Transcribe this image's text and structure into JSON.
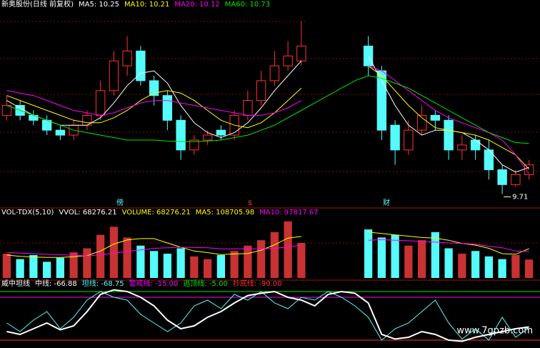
{
  "chart_data": [
    {
      "type": "candlestick",
      "title": "新奥股份(日线 前复权)",
      "up_color": "#ff3232",
      "down_color": "#54fcfc",
      "ylim": [
        9.5,
        13.4
      ],
      "open": [
        11.3,
        11.5,
        11.3,
        11.2,
        11.0,
        10.9,
        11.1,
        11.3,
        11.8,
        12.3,
        12.6,
        12.0,
        11.7,
        11.2,
        10.6,
        10.8,
        11.0,
        10.9,
        11.3,
        11.6,
        12.0,
        12.3,
        12.4,
        null,
        null,
        null,
        null,
        12.7,
        12.2,
        11.1,
        10.6,
        11.0,
        11.3,
        11.2,
        10.6,
        10.8,
        10.6,
        10.2,
        9.9,
        10.1
      ],
      "high": [
        11.7,
        11.6,
        11.4,
        11.3,
        11.1,
        11.2,
        11.4,
        12.0,
        12.6,
        12.9,
        12.7,
        12.1,
        11.8,
        11.3,
        10.9,
        11.0,
        11.1,
        11.4,
        11.8,
        12.2,
        12.6,
        12.8,
        13.2,
        null,
        null,
        null,
        null,
        12.9,
        12.3,
        11.2,
        11.2,
        11.5,
        11.4,
        11.3,
        10.9,
        10.9,
        10.8,
        10.3,
        10.2,
        10.4
      ],
      "low": [
        11.2,
        11.2,
        11.1,
        10.9,
        10.8,
        10.8,
        11.0,
        11.2,
        11.7,
        12.1,
        11.9,
        11.5,
        11.0,
        10.4,
        10.5,
        10.7,
        10.8,
        10.8,
        11.2,
        11.5,
        11.9,
        12.2,
        12.3,
        null,
        null,
        null,
        null,
        12.1,
        10.8,
        10.3,
        10.5,
        10.9,
        11.0,
        10.4,
        10.4,
        10.4,
        10.0,
        9.71,
        9.85,
        10.0
      ],
      "close": [
        11.5,
        11.3,
        11.2,
        11.0,
        10.9,
        11.1,
        11.3,
        11.8,
        12.4,
        12.6,
        12.0,
        11.7,
        11.2,
        10.6,
        10.8,
        10.9,
        10.9,
        11.3,
        11.6,
        12.0,
        12.3,
        12.5,
        12.7,
        null,
        null,
        null,
        null,
        12.3,
        11.0,
        10.6,
        11.0,
        11.3,
        11.2,
        10.6,
        10.7,
        10.6,
        10.2,
        9.9,
        10.1,
        10.3
      ],
      "series": [
        {
          "label": "MA5: 10.25",
          "color": "#ffffff",
          "values": [
            11.6,
            11.45,
            11.3,
            11.2,
            11.1,
            11.1,
            11.1,
            11.25,
            11.55,
            11.9,
            12.15,
            12.2,
            11.95,
            11.5,
            11.15,
            10.95,
            10.85,
            10.95,
            11.15,
            11.45,
            11.8,
            12.1,
            12.4,
            null,
            null,
            null,
            null,
            12.5,
            12.0,
            11.5,
            11.1,
            10.9,
            11.0,
            11.0,
            10.95,
            10.8,
            10.6,
            10.3,
            10.15,
            10.25
          ]
        },
        {
          "label": "MA10: 10.21",
          "color": "#ffff00",
          "values": [
            11.7,
            11.6,
            11.5,
            11.4,
            11.3,
            11.2,
            11.15,
            11.15,
            11.25,
            11.4,
            11.6,
            11.75,
            11.8,
            11.75,
            11.6,
            11.4,
            11.2,
            11.1,
            11.05,
            11.15,
            11.35,
            11.6,
            11.85,
            null,
            null,
            null,
            null,
            12.3,
            12.1,
            11.8,
            11.5,
            11.25,
            11.05,
            11.0,
            10.95,
            10.9,
            10.8,
            10.65,
            10.5,
            10.21
          ]
        },
        {
          "label": "MA20: 10.12",
          "color": "#ff00ff",
          "values": [
            11.8,
            11.75,
            11.7,
            11.6,
            11.5,
            11.4,
            11.35,
            11.3,
            11.35,
            11.45,
            11.55,
            11.6,
            11.6,
            11.55,
            11.5,
            11.45,
            11.4,
            11.35,
            11.3,
            11.3,
            11.35,
            11.45,
            11.6,
            null,
            null,
            null,
            null,
            12.3,
            12.2,
            12.0,
            11.8,
            11.6,
            11.4,
            11.25,
            11.15,
            11.05,
            10.95,
            10.8,
            10.5,
            10.12
          ]
        },
        {
          "label": "MA60: 10.73",
          "color": "#00e600",
          "values": [
            11.5,
            11.4,
            11.3,
            11.2,
            11.1,
            11.0,
            10.95,
            10.9,
            10.85,
            10.8,
            10.8,
            10.8,
            10.78,
            10.77,
            10.77,
            10.78,
            10.8,
            10.85,
            10.9,
            11.0,
            11.1,
            11.25,
            11.4,
            11.55,
            11.7,
            11.85,
            12.0,
            12.1,
            12.05,
            11.95,
            11.85,
            11.7,
            11.55,
            11.4,
            11.25,
            11.1,
            10.95,
            10.85,
            10.75,
            10.73
          ]
        }
      ]
    },
    {
      "type": "bar",
      "title": "VOL-TDX(5,10)",
      "ylim": [
        0,
        220000
      ],
      "notes": [
        {
          "text": "VVOL: 68276.21",
          "color": "#ffffff"
        },
        {
          "text": "VOLUME: 68276.21",
          "color": "#ffff00"
        }
      ],
      "values": [
        90000,
        70000,
        85000,
        60000,
        75000,
        95000,
        110000,
        160000,
        190000,
        150000,
        120000,
        100000,
        90000,
        110000,
        80000,
        70000,
        85000,
        100000,
        120000,
        140000,
        170000,
        210000,
        130000,
        null,
        null,
        null,
        null,
        180000,
        150000,
        160000,
        120000,
        140000,
        170000,
        110000,
        90000,
        100000,
        80000,
        70000,
        85000,
        68276.21
      ],
      "series": [
        {
          "label": "MA5: 108705.98",
          "color": "#ffff00",
          "values": [
            85000,
            80000,
            78000,
            76000,
            76000,
            79000,
            83000,
            100000,
            126000,
            141000,
            146000,
            146000,
            130000,
            114000,
            100000,
            94000,
            87000,
            89000,
            91000,
            103000,
            123000,
            148000,
            154000,
            null,
            null,
            null,
            null,
            170000,
            165000,
            160000,
            155000,
            150000,
            148000,
            140000,
            128000,
            122000,
            110000,
            90000,
            88000,
            108705.98
          ]
        },
        {
          "label": "MA10: 97817.67",
          "color": "#ff00ff",
          "values": [
            95000,
            92000,
            90000,
            88000,
            86000,
            84000,
            82000,
            86000,
            92000,
            98000,
            104000,
            110000,
            112000,
            114000,
            113000,
            112000,
            108000,
            108000,
            108000,
            108000,
            110000,
            115000,
            122000,
            null,
            null,
            null,
            null,
            140000,
            142000,
            140000,
            138000,
            136000,
            133000,
            130000,
            128000,
            125000,
            118000,
            112000,
            100000,
            97817.67
          ]
        }
      ]
    },
    {
      "type": "line",
      "title": "威中坦线",
      "ylim": [
        -100,
        5
      ],
      "series": [
        {
          "label": "中线: -66.88",
          "color": "#ffffff",
          "width": 2,
          "values": [
            -75,
            -80,
            -70,
            -60,
            -72,
            -65,
            -40,
            -10,
            -2,
            -5,
            -15,
            -30,
            -55,
            -70,
            -65,
            -50,
            -40,
            -25,
            -12,
            -8,
            -5,
            -15,
            -20,
            -30,
            -10,
            -5,
            -8,
            -25,
            -80,
            -88,
            -85,
            -75,
            -80,
            -90,
            -92,
            -85,
            -80,
            -75,
            -70,
            -66.88
          ]
        },
        {
          "label": "坦线: -68.75",
          "color": "#54fcfc",
          "width": 1,
          "values": [
            -60,
            -75,
            -55,
            -40,
            -70,
            -50,
            -20,
            -5,
            -15,
            -20,
            -45,
            -60,
            -75,
            -60,
            -30,
            -20,
            -35,
            -10,
            -20,
            -5,
            -25,
            -35,
            -15,
            -20,
            -5,
            -15,
            -30,
            -50,
            -90,
            -70,
            -60,
            -40,
            -20,
            -60,
            -88,
            -70,
            -90,
            -50,
            -85,
            -68.75
          ]
        }
      ],
      "levels": [
        {
          "label": "警戒线: -15.00",
          "value": -15,
          "color": "#ff00ff"
        },
        {
          "label": "逃顶线: -5.00",
          "value": -5,
          "color": "#00e600"
        },
        {
          "label": "抄底线: -90.00",
          "value": -90,
          "color": "#ff3232"
        }
      ]
    }
  ],
  "markers": [
    "傍",
    "$",
    "财"
  ],
  "watermark": "www.7gpzb.com"
}
